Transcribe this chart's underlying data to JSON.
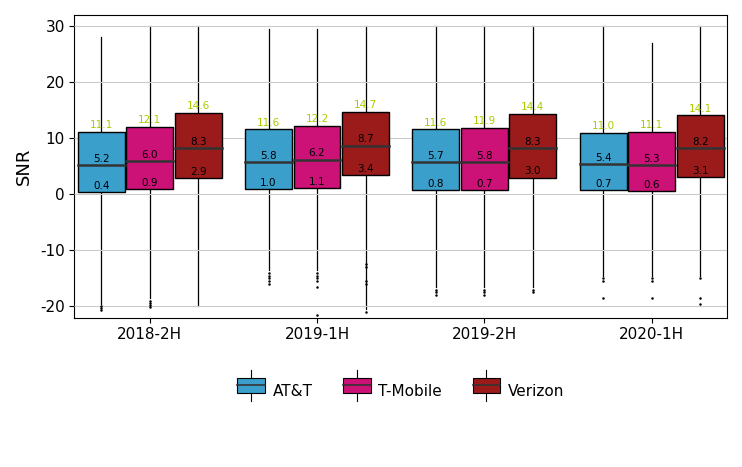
{
  "periods": [
    "2018-2H",
    "2019-1H",
    "2019-2H",
    "2020-1H"
  ],
  "carriers": [
    "AT&T",
    "T-Mobile",
    "Verizon"
  ],
  "colors": {
    "AT&T": "#3B9FCC",
    "T-Mobile": "#CC1177",
    "Verizon": "#9B1B1B"
  },
  "label_colors": {
    "q3": "#AACC00",
    "med": "#000000",
    "q1": "#000000"
  },
  "boxes": {
    "2018-2H": {
      "AT&T": {
        "whislo": -19.5,
        "q1": 0.4,
        "med": 5.2,
        "q3": 11.1,
        "whishi": 28.0,
        "fliers_low": [
          -20.0,
          -20.3,
          -20.6
        ],
        "fliers_high": []
      },
      "T-Mobile": {
        "whislo": -18.5,
        "q1": 0.9,
        "med": 6.0,
        "q3": 12.1,
        "whishi": 30.0,
        "fliers_low": [
          -19.0,
          -19.3,
          -19.7,
          -20.1
        ],
        "fliers_high": []
      },
      "Verizon": {
        "whislo": -20.0,
        "q1": 2.9,
        "med": 8.3,
        "q3": 14.6,
        "whishi": 30.0,
        "fliers_low": [],
        "fliers_high": []
      }
    },
    "2019-1H": {
      "AT&T": {
        "whislo": -13.5,
        "q1": 1.0,
        "med": 5.8,
        "q3": 11.6,
        "whishi": 29.5,
        "fliers_low": [
          -14.0,
          -14.5,
          -15.0,
          -15.5,
          -16.0
        ],
        "fliers_high": []
      },
      "T-Mobile": {
        "whislo": -13.5,
        "q1": 1.1,
        "med": 6.2,
        "q3": 12.2,
        "whishi": 29.5,
        "fliers_low": [
          -14.0,
          -14.5,
          -15.0,
          -15.5,
          -16.5,
          -21.5
        ],
        "fliers_high": []
      },
      "Verizon": {
        "whislo": -20.5,
        "q1": 3.4,
        "med": 8.7,
        "q3": 14.7,
        "whishi": 30.0,
        "fliers_low": [
          -12.5,
          -13.0,
          -15.5,
          -16.0,
          -21.0
        ],
        "fliers_high": []
      }
    },
    "2019-2H": {
      "AT&T": {
        "whislo": -16.5,
        "q1": 0.8,
        "med": 5.7,
        "q3": 11.6,
        "whishi": 30.0,
        "fliers_low": [
          -17.0,
          -17.5,
          -18.0
        ],
        "fliers_high": []
      },
      "T-Mobile": {
        "whislo": -16.5,
        "q1": 0.7,
        "med": 5.8,
        "q3": 11.9,
        "whishi": 30.0,
        "fliers_low": [
          -17.0,
          -17.5,
          -18.0
        ],
        "fliers_high": []
      },
      "Verizon": {
        "whislo": -16.5,
        "q1": 3.0,
        "med": 8.3,
        "q3": 14.4,
        "whishi": 30.0,
        "fliers_low": [
          -17.0,
          -17.5
        ],
        "fliers_high": []
      }
    },
    "2020-1H": {
      "AT&T": {
        "whislo": -14.5,
        "q1": 0.7,
        "med": 5.4,
        "q3": 11.0,
        "whishi": 30.0,
        "fliers_low": [
          -15.0,
          -15.5,
          -18.5
        ],
        "fliers_high": []
      },
      "T-Mobile": {
        "whislo": -14.5,
        "q1": 0.6,
        "med": 5.3,
        "q3": 11.1,
        "whishi": 27.0,
        "fliers_low": [
          -15.0,
          -15.5,
          -18.5
        ],
        "fliers_high": []
      },
      "Verizon": {
        "whislo": -14.5,
        "q1": 3.1,
        "med": 8.2,
        "q3": 14.1,
        "whishi": 30.0,
        "fliers_low": [
          -15.0,
          -18.5,
          -19.5
        ],
        "fliers_high": []
      }
    }
  },
  "ylabel": "SNR",
  "ylim": [
    -22,
    32
  ],
  "yticks": [
    -20,
    -10,
    0,
    10,
    20,
    30
  ],
  "background_color": "#FFFFFF",
  "grid_color": "#CCCCCC",
  "box_width": 0.28,
  "offsets": {
    "AT&T": -0.29,
    "T-Mobile": 0.0,
    "Verizon": 0.29
  }
}
